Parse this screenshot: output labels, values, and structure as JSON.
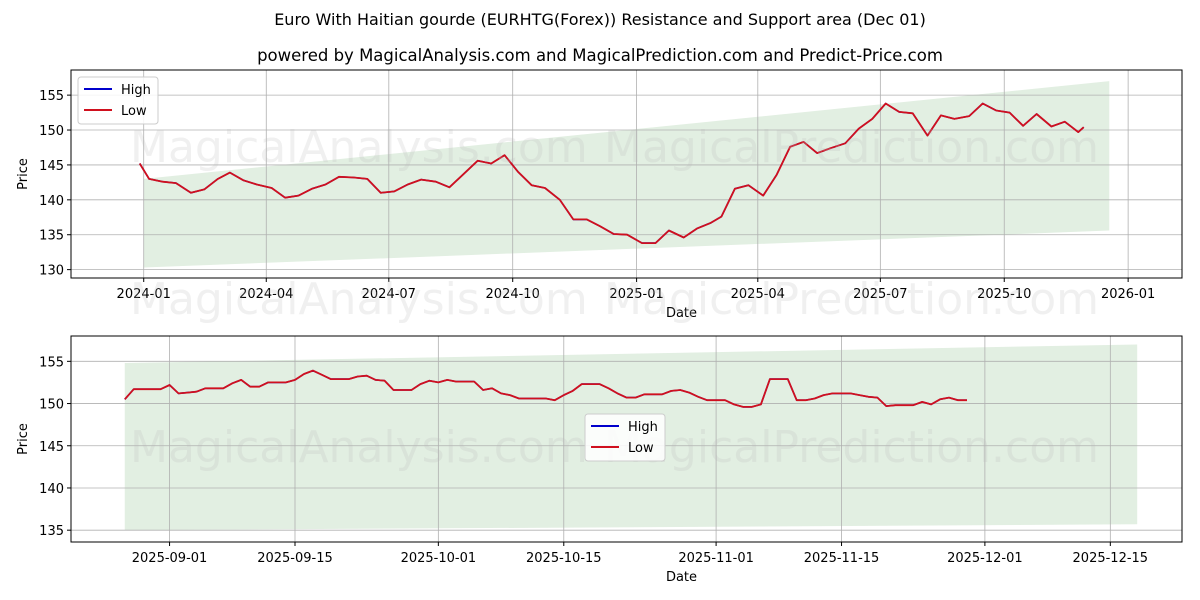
{
  "header": {
    "title": "Euro With Haitian gourde (EURHTG(Forex)) Resistance and Support area (Dec 01)",
    "subtitle": "powered by MagicalAnalysis.com and MagicalPrediction.com and Predict-Price.com"
  },
  "watermarks": [
    "MagicalAnalysis.com",
    "MagicalPrediction.com"
  ],
  "colors": {
    "high": "#0000cc",
    "low": "#d0101e",
    "band": "#e2efe2",
    "grid": "#b0b0b0"
  },
  "chart_data": [
    {
      "type": "line",
      "title": "Euro With Haitian gourde (EURHTG(Forex)) Resistance and Support area (Dec 01)",
      "xlabel": "Date",
      "ylabel": "Price",
      "ylim": [
        128.8,
        158.6
      ],
      "yticks": [
        130,
        135,
        140,
        145,
        150,
        155
      ],
      "xticks": [
        "2024-01",
        "2024-04",
        "2024-07",
        "2024-10",
        "2025-01",
        "2025-04",
        "2025-07",
        "2025-10",
        "2026-01"
      ],
      "grid": true,
      "legend": {
        "position": "upper left",
        "entries": [
          "High",
          "Low"
        ]
      },
      "band": {
        "start": "2024-01",
        "end": "2025-12-18",
        "upper_start": 143.0,
        "upper_end": 157.0,
        "lower_start": 130.3,
        "lower_end": 135.6
      },
      "x": [
        "2023-12-29",
        "2024-01-05",
        "2024-01-15",
        "2024-01-25",
        "2024-02-05",
        "2024-02-15",
        "2024-02-25",
        "2024-03-05",
        "2024-03-15",
        "2024-03-25",
        "2024-04-05",
        "2024-04-15",
        "2024-04-25",
        "2024-05-05",
        "2024-05-15",
        "2024-05-25",
        "2024-06-05",
        "2024-06-15",
        "2024-06-25",
        "2024-07-05",
        "2024-07-15",
        "2024-07-25",
        "2024-08-05",
        "2024-08-15",
        "2024-08-25",
        "2024-09-05",
        "2024-09-15",
        "2024-09-25",
        "2024-10-05",
        "2024-10-15",
        "2024-10-25",
        "2024-11-05",
        "2024-11-15",
        "2024-11-25",
        "2024-12-05",
        "2024-12-15",
        "2024-12-25",
        "2025-01-05",
        "2025-01-15",
        "2025-01-25",
        "2025-02-05",
        "2025-02-15",
        "2025-02-25",
        "2025-03-05",
        "2025-03-15",
        "2025-03-25",
        "2025-04-05",
        "2025-04-15",
        "2025-04-25",
        "2025-05-05",
        "2025-05-15",
        "2025-05-25",
        "2025-06-05",
        "2025-06-15",
        "2025-06-25",
        "2025-07-05",
        "2025-07-15",
        "2025-07-25",
        "2025-08-05",
        "2025-08-15",
        "2025-08-25",
        "2025-09-05",
        "2025-09-15",
        "2025-09-25",
        "2025-10-05",
        "2025-10-15",
        "2025-10-25",
        "2025-11-05",
        "2025-11-15",
        "2025-11-25",
        "2025-11-29"
      ],
      "series": [
        {
          "name": "High",
          "values": [
            145.2,
            143.0,
            142.6,
            142.4,
            141.0,
            141.5,
            143.0,
            143.9,
            142.8,
            142.2,
            141.7,
            140.3,
            140.6,
            141.6,
            142.2,
            143.3,
            143.2,
            143.0,
            141.0,
            141.2,
            142.2,
            142.9,
            142.6,
            141.8,
            143.6,
            145.6,
            145.2,
            146.4,
            144.0,
            142.1,
            141.7,
            140.0,
            137.2,
            137.2,
            136.2,
            135.1,
            135.0,
            133.8,
            133.8,
            135.6,
            134.6,
            135.9,
            136.7,
            137.6,
            141.6,
            142.1,
            140.6,
            143.6,
            147.6,
            148.3,
            146.7,
            147.4,
            148.1,
            150.2,
            151.6,
            153.8,
            152.6,
            152.4,
            149.2,
            152.1,
            151.6,
            152.0,
            153.8,
            152.8,
            152.5,
            150.6,
            152.3,
            150.5,
            151.2,
            149.7,
            150.4
          ]
        },
        {
          "name": "Low",
          "values": [
            145.2,
            143.0,
            142.6,
            142.4,
            141.0,
            141.5,
            143.0,
            143.9,
            142.8,
            142.2,
            141.7,
            140.3,
            140.6,
            141.6,
            142.2,
            143.3,
            143.2,
            143.0,
            141.0,
            141.2,
            142.2,
            142.9,
            142.6,
            141.8,
            143.6,
            145.6,
            145.2,
            146.4,
            144.0,
            142.1,
            141.7,
            140.0,
            137.2,
            137.2,
            136.2,
            135.1,
            135.0,
            133.8,
            133.8,
            135.6,
            134.6,
            135.9,
            136.7,
            137.6,
            141.6,
            142.1,
            140.6,
            143.6,
            147.6,
            148.3,
            146.7,
            147.4,
            148.1,
            150.2,
            151.6,
            153.8,
            152.6,
            152.4,
            149.2,
            152.1,
            151.6,
            152.0,
            153.8,
            152.8,
            152.5,
            150.6,
            152.3,
            150.5,
            151.2,
            149.7,
            150.4
          ]
        }
      ]
    },
    {
      "type": "line",
      "xlabel": "Date",
      "ylabel": "Price",
      "ylim": [
        133.6,
        158.0
      ],
      "yticks": [
        135,
        140,
        145,
        150,
        155
      ],
      "xticks": [
        "2025-09-01",
        "2025-09-15",
        "2025-10-01",
        "2025-10-15",
        "2025-11-01",
        "2025-11-15",
        "2025-12-01",
        "2025-12-15"
      ],
      "grid": true,
      "legend": {
        "position": "center",
        "entries": [
          "High",
          "Low"
        ]
      },
      "band": {
        "start": "2025-08-27",
        "end": "2025-12-18",
        "upper_start": 154.8,
        "upper_end": 157.0,
        "lower_start": 135.0,
        "lower_end": 135.7
      },
      "x": [
        "2025-08-27",
        "2025-08-28",
        "2025-08-29",
        "2025-08-31",
        "2025-09-01",
        "2025-09-02",
        "2025-09-03",
        "2025-09-04",
        "2025-09-05",
        "2025-09-06",
        "2025-09-07",
        "2025-09-08",
        "2025-09-09",
        "2025-09-10",
        "2025-09-11",
        "2025-09-12",
        "2025-09-13",
        "2025-09-14",
        "2025-09-15",
        "2025-09-16",
        "2025-09-17",
        "2025-09-18",
        "2025-09-19",
        "2025-09-20",
        "2025-09-21",
        "2025-09-22",
        "2025-09-23",
        "2025-09-24",
        "2025-09-25",
        "2025-09-26",
        "2025-09-27",
        "2025-09-28",
        "2025-09-29",
        "2025-09-30",
        "2025-10-01",
        "2025-10-02",
        "2025-10-03",
        "2025-10-04",
        "2025-10-05",
        "2025-10-06",
        "2025-10-07",
        "2025-10-08",
        "2025-10-09",
        "2025-10-10",
        "2025-10-11",
        "2025-10-12",
        "2025-10-13",
        "2025-10-14",
        "2025-10-15",
        "2025-10-16",
        "2025-10-17",
        "2025-10-18",
        "2025-10-19",
        "2025-10-20",
        "2025-10-21",
        "2025-10-22",
        "2025-10-23",
        "2025-10-24",
        "2025-10-25",
        "2025-10-26",
        "2025-10-27",
        "2025-10-28",
        "2025-10-29",
        "2025-10-30",
        "2025-10-31",
        "2025-11-01",
        "2025-11-02",
        "2025-11-03",
        "2025-11-04",
        "2025-11-05",
        "2025-11-06",
        "2025-11-07",
        "2025-11-08",
        "2025-11-09",
        "2025-11-10",
        "2025-11-11",
        "2025-11-12",
        "2025-11-13",
        "2025-11-14",
        "2025-11-15",
        "2025-11-16",
        "2025-11-17",
        "2025-11-18",
        "2025-11-19",
        "2025-11-20",
        "2025-11-21",
        "2025-11-22",
        "2025-11-23",
        "2025-11-24",
        "2025-11-25",
        "2025-11-26",
        "2025-11-27",
        "2025-11-28",
        "2025-11-29"
      ],
      "series": [
        {
          "name": "High",
          "values": [
            150.5,
            151.7,
            151.7,
            151.7,
            152.2,
            151.2,
            151.3,
            151.4,
            151.8,
            151.8,
            151.8,
            152.4,
            152.8,
            152.0,
            152.0,
            152.5,
            152.5,
            152.5,
            152.8,
            153.5,
            153.9,
            153.4,
            152.9,
            152.9,
            152.9,
            153.2,
            153.3,
            152.8,
            152.7,
            151.6,
            151.6,
            151.6,
            152.3,
            152.7,
            152.5,
            152.8,
            152.6,
            152.6,
            152.6,
            151.6,
            151.8,
            151.2,
            151.0,
            150.6,
            150.6,
            150.6,
            150.6,
            150.4,
            151.0,
            151.5,
            152.3,
            152.3,
            152.3,
            151.8,
            151.2,
            150.7,
            150.7,
            151.1,
            151.1,
            151.1,
            151.5,
            151.6,
            151.3,
            150.8,
            150.4,
            150.4,
            150.4,
            149.9,
            149.6,
            149.6,
            149.9,
            152.9,
            152.9,
            152.9,
            150.4,
            150.4,
            150.6,
            151.0,
            151.2,
            151.2,
            151.2,
            151.0,
            150.8,
            150.7,
            149.7,
            149.8,
            149.8,
            149.8,
            150.2,
            149.9,
            150.5,
            150.7,
            150.4,
            150.4
          ]
        },
        {
          "name": "Low",
          "values": [
            150.5,
            151.7,
            151.7,
            151.7,
            152.2,
            151.2,
            151.3,
            151.4,
            151.8,
            151.8,
            151.8,
            152.4,
            152.8,
            152.0,
            152.0,
            152.5,
            152.5,
            152.5,
            152.8,
            153.5,
            153.9,
            153.4,
            152.9,
            152.9,
            152.9,
            153.2,
            153.3,
            152.8,
            152.7,
            151.6,
            151.6,
            151.6,
            152.3,
            152.7,
            152.5,
            152.8,
            152.6,
            152.6,
            152.6,
            151.6,
            151.8,
            151.2,
            151.0,
            150.6,
            150.6,
            150.6,
            150.6,
            150.4,
            151.0,
            151.5,
            152.3,
            152.3,
            152.3,
            151.8,
            151.2,
            150.7,
            150.7,
            151.1,
            151.1,
            151.1,
            151.5,
            151.6,
            151.3,
            150.8,
            150.4,
            150.4,
            150.4,
            149.9,
            149.6,
            149.6,
            149.9,
            152.9,
            152.9,
            152.9,
            150.4,
            150.4,
            150.6,
            151.0,
            151.2,
            151.2,
            151.2,
            151.0,
            150.8,
            150.7,
            149.7,
            149.8,
            149.8,
            149.8,
            150.2,
            149.9,
            150.5,
            150.7,
            150.4,
            150.4
          ]
        }
      ]
    }
  ]
}
